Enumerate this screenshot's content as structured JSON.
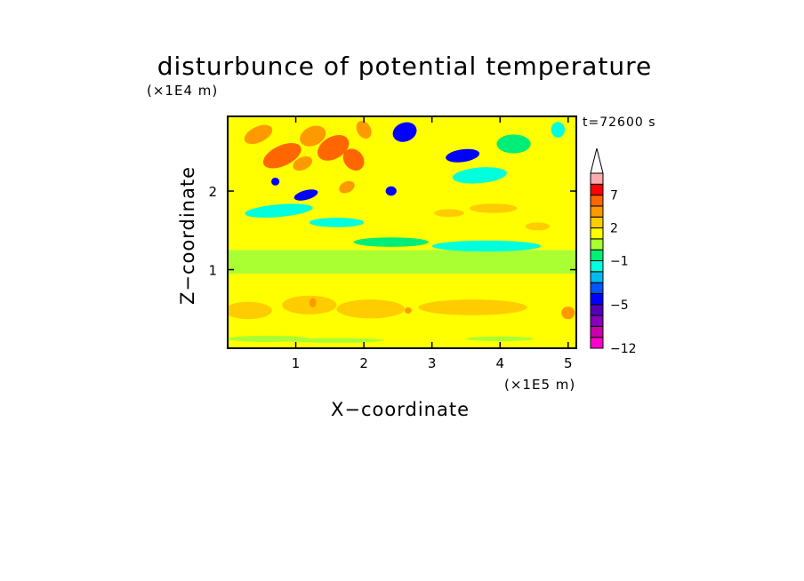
{
  "chart_data": {
    "type": "heatmap",
    "title": "disturbunce of potential temperature",
    "xlabel": "X−coordinate",
    "ylabel": "Z−coordinate",
    "x_unit": "(×1E5 m)",
    "y_unit": "(×1E4 m)",
    "time_label": "t=72600 s",
    "xlim": [
      0,
      5.12
    ],
    "ylim": [
      0,
      2.95
    ],
    "x_ticks": [
      1,
      2,
      3,
      4,
      5
    ],
    "y_ticks": [
      1,
      2
    ],
    "colorbar": {
      "tick_labels": [
        "7",
        "2",
        "−1",
        "−5",
        "−12"
      ],
      "levels": [
        -12,
        -10,
        -8,
        -6,
        -5,
        -4,
        -3,
        -2,
        -1,
        0,
        1,
        2,
        3,
        5,
        7,
        9
      ],
      "colors": [
        "#ff00cc",
        "#cc00aa",
        "#8800bb",
        "#5500bb",
        "#0000ff",
        "#0055ff",
        "#00bbee",
        "#00ffdd",
        "#00ee77",
        "#aaff33",
        "#ffff00",
        "#ffcc00",
        "#ff9900",
        "#ff6600",
        "#ff0000",
        "#ffaaaa"
      ],
      "extend": "max"
    },
    "features": [
      {
        "x": 0.45,
        "z": 2.72,
        "rx": 0.22,
        "rz": 0.1,
        "value": 4,
        "tilt": -25
      },
      {
        "x": 0.8,
        "z": 2.45,
        "rx": 0.3,
        "rz": 0.13,
        "value": 5,
        "tilt": -25
      },
      {
        "x": 1.25,
        "z": 2.7,
        "rx": 0.2,
        "rz": 0.12,
        "value": 4,
        "tilt": -25
      },
      {
        "x": 1.55,
        "z": 2.55,
        "rx": 0.25,
        "rz": 0.14,
        "value": 5,
        "tilt": -30
      },
      {
        "x": 1.85,
        "z": 2.4,
        "rx": 0.14,
        "rz": 0.15,
        "value": 5,
        "tilt": -40
      },
      {
        "x": 1.1,
        "z": 2.35,
        "rx": 0.15,
        "rz": 0.08,
        "value": 3,
        "tilt": -25
      },
      {
        "x": 1.75,
        "z": 2.05,
        "rx": 0.12,
        "rz": 0.07,
        "value": 4,
        "tilt": -25
      },
      {
        "x": 2.0,
        "z": 2.78,
        "rx": 0.1,
        "rz": 0.12,
        "value": 3,
        "tilt": -30
      },
      {
        "x": 2.6,
        "z": 2.75,
        "rx": 0.18,
        "rz": 0.12,
        "value": -5,
        "tilt": -20
      },
      {
        "x": 3.45,
        "z": 2.45,
        "rx": 0.25,
        "rz": 0.08,
        "value": -5,
        "tilt": -8
      },
      {
        "x": 1.15,
        "z": 1.95,
        "rx": 0.18,
        "rz": 0.06,
        "value": -5,
        "tilt": -15
      },
      {
        "x": 0.7,
        "z": 2.12,
        "rx": 0.06,
        "rz": 0.05,
        "value": -5,
        "tilt": 0
      },
      {
        "x": 2.4,
        "z": 2.0,
        "rx": 0.08,
        "rz": 0.06,
        "value": -5,
        "tilt": 0
      },
      {
        "x": 3.7,
        "z": 2.2,
        "rx": 0.4,
        "rz": 0.1,
        "value": -2,
        "tilt": -5
      },
      {
        "x": 4.2,
        "z": 2.6,
        "rx": 0.25,
        "rz": 0.12,
        "value": -1,
        "tilt": 0
      },
      {
        "x": 4.85,
        "z": 2.78,
        "rx": 0.1,
        "rz": 0.1,
        "value": -2,
        "tilt": 0
      },
      {
        "x": 0.75,
        "z": 1.75,
        "rx": 0.5,
        "rz": 0.08,
        "value": -2,
        "tilt": -5
      },
      {
        "x": 1.6,
        "z": 1.6,
        "rx": 0.4,
        "rz": 0.06,
        "value": -2,
        "tilt": 0
      },
      {
        "x": 3.8,
        "z": 1.3,
        "rx": 0.8,
        "rz": 0.07,
        "value": -2,
        "tilt": 0
      },
      {
        "x": 2.4,
        "z": 1.35,
        "rx": 0.55,
        "rz": 0.06,
        "value": -1,
        "tilt": 0
      },
      {
        "x": 3.9,
        "z": 1.78,
        "rx": 0.35,
        "rz": 0.06,
        "value": 2,
        "tilt": 0
      },
      {
        "x": 3.25,
        "z": 1.72,
        "rx": 0.22,
        "rz": 0.05,
        "value": 2,
        "tilt": 0
      },
      {
        "x": 4.55,
        "z": 1.55,
        "rx": 0.18,
        "rz": 0.05,
        "value": 2,
        "tilt": 0
      },
      {
        "x": 0.3,
        "z": 0.48,
        "rx": 0.35,
        "rz": 0.11,
        "value": 2,
        "tilt": 0
      },
      {
        "x": 1.2,
        "z": 0.55,
        "rx": 0.4,
        "rz": 0.12,
        "value": 2,
        "tilt": 0
      },
      {
        "x": 2.1,
        "z": 0.5,
        "rx": 0.5,
        "rz": 0.12,
        "value": 2,
        "tilt": 0
      },
      {
        "x": 3.6,
        "z": 0.52,
        "rx": 0.8,
        "rz": 0.1,
        "value": 2,
        "tilt": 0
      },
      {
        "x": 1.25,
        "z": 0.58,
        "rx": 0.05,
        "rz": 0.06,
        "value": 4,
        "tilt": 0
      },
      {
        "x": 2.65,
        "z": 0.48,
        "rx": 0.05,
        "rz": 0.04,
        "value": 4,
        "tilt": 0
      },
      {
        "x": 5.0,
        "z": 0.45,
        "rx": 0.1,
        "rz": 0.08,
        "value": 4,
        "tilt": 0
      },
      {
        "x": 0.6,
        "z": 0.12,
        "rx": 0.6,
        "rz": 0.04,
        "value": 0,
        "tilt": 0
      },
      {
        "x": 1.6,
        "z": 0.1,
        "rx": 0.7,
        "rz": 0.03,
        "value": 0,
        "tilt": 0
      },
      {
        "x": 4.0,
        "z": 0.12,
        "rx": 0.5,
        "rz": 0.03,
        "value": 0,
        "tilt": 0
      }
    ]
  }
}
